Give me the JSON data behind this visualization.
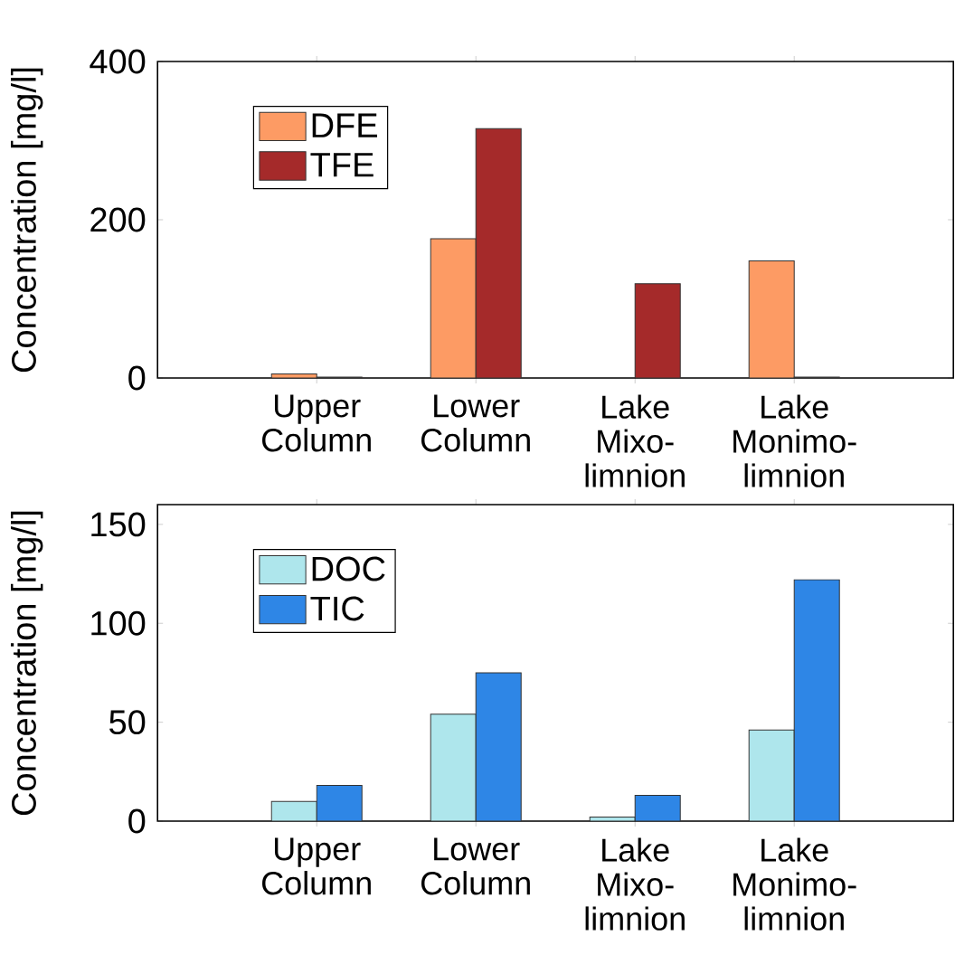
{
  "chart_data": [
    {
      "type": "bar",
      "ylabel": "Concentration [mg/l]",
      "categories": [
        "Upper Column",
        "Lower Column",
        "Lake Mixo-limnion",
        "Lake Monimo-limnion"
      ],
      "ylim": [
        0,
        400
      ],
      "yticks": [
        0,
        200,
        400
      ],
      "legend": "top left",
      "series": [
        {
          "name": "DFE",
          "color": "#fd9b64",
          "values": [
            5,
            176,
            null,
            148
          ]
        },
        {
          "name": "TFE",
          "color": "#a52a2a",
          "values": [
            1,
            315,
            119,
            1
          ]
        }
      ]
    },
    {
      "type": "bar",
      "ylabel": "Concentration [mg/l]",
      "categories": [
        "Upper Column",
        "Lower Column",
        "Lake Mixo-limnion",
        "Lake Monimo-limnion"
      ],
      "ylim": [
        0,
        160
      ],
      "yticks": [
        0,
        50,
        100,
        150
      ],
      "legend": "top left",
      "series": [
        {
          "name": "DOC",
          "color": "#aee6ec",
          "values": [
            10,
            54,
            2,
            46
          ]
        },
        {
          "name": "TIC",
          "color": "#2e86e6",
          "values": [
            18,
            75,
            13,
            122
          ]
        }
      ]
    }
  ]
}
